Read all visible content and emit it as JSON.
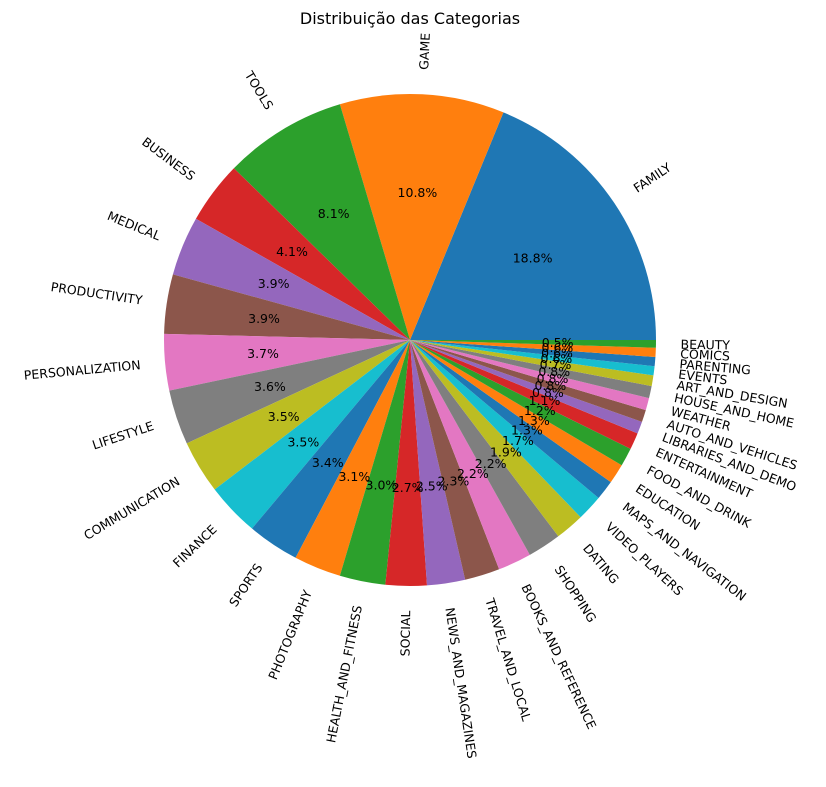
{
  "chart_data": {
    "type": "pie",
    "title": "Distribuição das Categorias",
    "start_angle_deg": 0,
    "direction": "counterclockwise",
    "slices": [
      {
        "label": "FAMILY",
        "value": 18.8,
        "pct_label": "18.8%",
        "color": "#1f77b4"
      },
      {
        "label": "GAME",
        "value": 10.8,
        "pct_label": "10.8%",
        "color": "#ff7f0e"
      },
      {
        "label": "TOOLS",
        "value": 8.1,
        "pct_label": "8.1%",
        "color": "#2ca02c"
      },
      {
        "label": "BUSINESS",
        "value": 4.1,
        "pct_label": "4.1%",
        "color": "#d62728"
      },
      {
        "label": "MEDICAL",
        "value": 3.9,
        "pct_label": "3.9%",
        "color": "#9467bd"
      },
      {
        "label": "PRODUCTIVITY",
        "value": 3.9,
        "pct_label": "3.9%",
        "color": "#8c564b"
      },
      {
        "label": "PERSONALIZATION",
        "value": 3.7,
        "pct_label": "3.7%",
        "color": "#e377c2"
      },
      {
        "label": "LIFESTYLE",
        "value": 3.6,
        "pct_label": "3.6%",
        "color": "#7f7f7f"
      },
      {
        "label": "COMMUNICATION",
        "value": 3.5,
        "pct_label": "3.5%",
        "color": "#bcbd22"
      },
      {
        "label": "FINANCE",
        "value": 3.5,
        "pct_label": "3.5%",
        "color": "#17becf"
      },
      {
        "label": "SPORTS",
        "value": 3.4,
        "pct_label": "3.4%",
        "color": "#1f77b4"
      },
      {
        "label": "PHOTOGRAPHY",
        "value": 3.1,
        "pct_label": "3.1%",
        "color": "#ff7f0e"
      },
      {
        "label": "HEALTH_AND_FITNESS",
        "value": 3.0,
        "pct_label": "3.0%",
        "color": "#2ca02c"
      },
      {
        "label": "SOCIAL",
        "value": 2.7,
        "pct_label": "2.7%",
        "color": "#d62728"
      },
      {
        "label": "NEWS_AND_MAGAZINES",
        "value": 2.5,
        "pct_label": "2.5%",
        "color": "#9467bd"
      },
      {
        "label": "TRAVEL_AND_LOCAL",
        "value": 2.3,
        "pct_label": "2.3%",
        "color": "#8c564b"
      },
      {
        "label": "BOOKS_AND_REFERENCE",
        "value": 2.2,
        "pct_label": "2.2%",
        "color": "#e377c2"
      },
      {
        "label": "SHOPPING",
        "value": 2.2,
        "pct_label": "2.2%",
        "color": "#7f7f7f"
      },
      {
        "label": "DATING",
        "value": 1.9,
        "pct_label": "1.9%",
        "color": "#bcbd22"
      },
      {
        "label": "VIDEO_PLAYERS",
        "value": 1.7,
        "pct_label": "1.7%",
        "color": "#17becf"
      },
      {
        "label": "MAPS_AND_NAVIGATION",
        "value": 1.3,
        "pct_label": "1.3%",
        "color": "#1f77b4"
      },
      {
        "label": "EDUCATION",
        "value": 1.3,
        "pct_label": "1.3%",
        "color": "#ff7f0e"
      },
      {
        "label": "FOOD_AND_DRINK",
        "value": 1.2,
        "pct_label": "1.2%",
        "color": "#2ca02c"
      },
      {
        "label": "ENTERTAINMENT",
        "value": 1.1,
        "pct_label": "1.1%",
        "color": "#d62728"
      },
      {
        "label": "LIBRARIES_AND_DEMO",
        "value": 0.8,
        "pct_label": "0.8%",
        "color": "#9467bd"
      },
      {
        "label": "AUTO_AND_VEHICLES",
        "value": 0.8,
        "pct_label": "0.8%",
        "color": "#8c564b"
      },
      {
        "label": "WEATHER",
        "value": 0.8,
        "pct_label": "0.8%",
        "color": "#e377c2"
      },
      {
        "label": "HOUSE_AND_HOME",
        "value": 0.8,
        "pct_label": "0.8%",
        "color": "#7f7f7f"
      },
      {
        "label": "ART_AND_DESIGN",
        "value": 0.7,
        "pct_label": "0.7%",
        "color": "#bcbd22"
      },
      {
        "label": "EVENTS",
        "value": 0.6,
        "pct_label": "0.6%",
        "color": "#17becf"
      },
      {
        "label": "PARENTING",
        "value": 0.6,
        "pct_label": "0.6%",
        "color": "#1f77b4"
      },
      {
        "label": "COMICS",
        "value": 0.6,
        "pct_label": "0.6%",
        "color": "#ff7f0e"
      },
      {
        "label": "BEAUTY",
        "value": 0.5,
        "pct_label": "0.5%",
        "color": "#2ca02c"
      }
    ]
  }
}
